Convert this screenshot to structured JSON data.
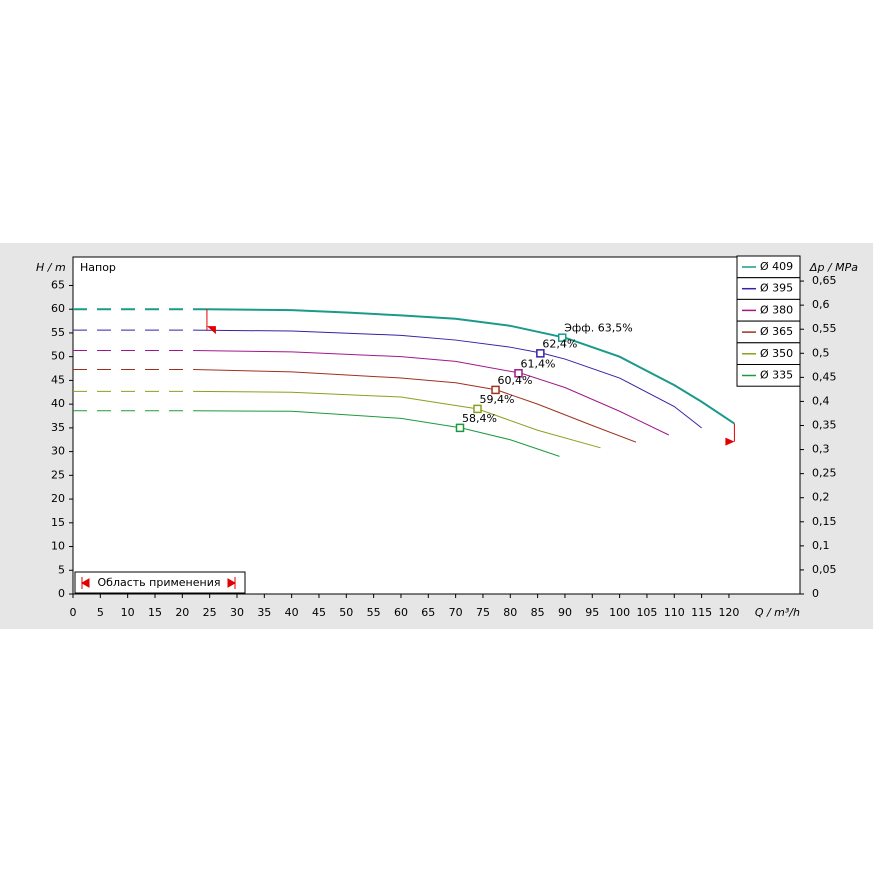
{
  "chart_data": {
    "type": "line",
    "y_label": "H / m",
    "y_title": "Напор",
    "y2_label": "Δp / MPa",
    "x_label": "Q / m³/h",
    "xlim": [
      0,
      133
    ],
    "ylim": [
      0,
      71
    ],
    "y2lim": [
      0,
      0.7
    ],
    "xticks": [
      0,
      5,
      10,
      15,
      20,
      25,
      30,
      35,
      40,
      45,
      50,
      55,
      60,
      65,
      70,
      75,
      80,
      85,
      90,
      95,
      100,
      105,
      110,
      115,
      120
    ],
    "yticks": [
      0,
      5,
      10,
      15,
      20,
      25,
      30,
      35,
      40,
      45,
      50,
      55,
      60,
      65
    ],
    "y2ticks": [
      0,
      {
        "value": 0.05,
        "label": "0,05"
      },
      {
        "value": 0.1,
        "label": "0,1"
      },
      {
        "value": 0.15,
        "label": "0,15"
      },
      {
        "value": 0.2,
        "label": "0,2"
      },
      {
        "value": 0.25,
        "label": "0,25"
      },
      {
        "value": 0.3,
        "label": "0,3"
      },
      {
        "value": 0.35,
        "label": "0,35"
      },
      {
        "value": 0.4,
        "label": "0,4"
      },
      {
        "value": 0.45,
        "label": "0,45"
      },
      {
        "value": 0.5,
        "label": "0,5"
      },
      {
        "value": 0.55,
        "label": "0,55"
      },
      {
        "value": 0.6,
        "label": "0,6"
      },
      {
        "value": 0.65,
        "label": "0,65"
      }
    ],
    "grid": false,
    "legend": "top-right",
    "series": [
      {
        "name": "Ø 409",
        "color": "#1a9a8a",
        "x": [
          0,
          24.5,
          40,
          50,
          60,
          70,
          80,
          90,
          100,
          110,
          115,
          121
        ],
        "values": [
          60,
          60,
          59.8,
          59.3,
          58.7,
          58,
          56.5,
          54,
          50,
          44,
          40.5,
          35.9
        ],
        "point": {
          "x": 89.5,
          "value": 54,
          "label": "Эфф.  63,5%"
        }
      },
      {
        "name": "Ø 395",
        "color": "#3a1fa8",
        "x": [
          0,
          22,
          40,
          60,
          70,
          80,
          86,
          90,
          100,
          110,
          115
        ],
        "values": [
          55.6,
          55.6,
          55.4,
          54.5,
          53.5,
          52,
          50.7,
          49.5,
          45.5,
          39.5,
          35
        ],
        "point": {
          "x": 85.5,
          "value": 50.7,
          "label": "62,4%"
        }
      },
      {
        "name": "Ø 380",
        "color": "#a0198c",
        "x": [
          0,
          22,
          40,
          60,
          70,
          82,
          90,
          100,
          109
        ],
        "values": [
          51.3,
          51.3,
          51,
          50,
          49,
          46.5,
          43.5,
          38.5,
          33.5
        ],
        "point": {
          "x": 81.5,
          "value": 46.5,
          "label": "61,4%"
        }
      },
      {
        "name": "Ø 365",
        "color": "#a0321c",
        "x": [
          0,
          22,
          40,
          60,
          70,
          77.5,
          85,
          95,
          103
        ],
        "values": [
          47.3,
          47.3,
          46.8,
          45.5,
          44.5,
          43,
          40,
          35.5,
          32
        ],
        "point": {
          "x": 77.3,
          "value": 43,
          "label": "60,4%"
        }
      },
      {
        "name": "Ø 350",
        "color": "#8ca01c",
        "x": [
          0,
          22,
          40,
          60,
          74,
          85,
          96.5
        ],
        "values": [
          42.7,
          42.7,
          42.5,
          41.5,
          39,
          34.5,
          30.8
        ],
        "point": {
          "x": 74,
          "value": 39,
          "label": "59,4%"
        }
      },
      {
        "name": "Ø 335",
        "color": "#1e9a3c",
        "x": [
          0,
          22,
          40,
          60,
          71,
          80,
          89
        ],
        "values": [
          38.6,
          38.6,
          38.5,
          37,
          35,
          32.5,
          29
        ],
        "point": {
          "x": 70.8,
          "value": 35,
          "label": "58,4%"
        }
      }
    ],
    "application_range": [
      24.5,
      121
    ],
    "application_label": "Область применения"
  }
}
